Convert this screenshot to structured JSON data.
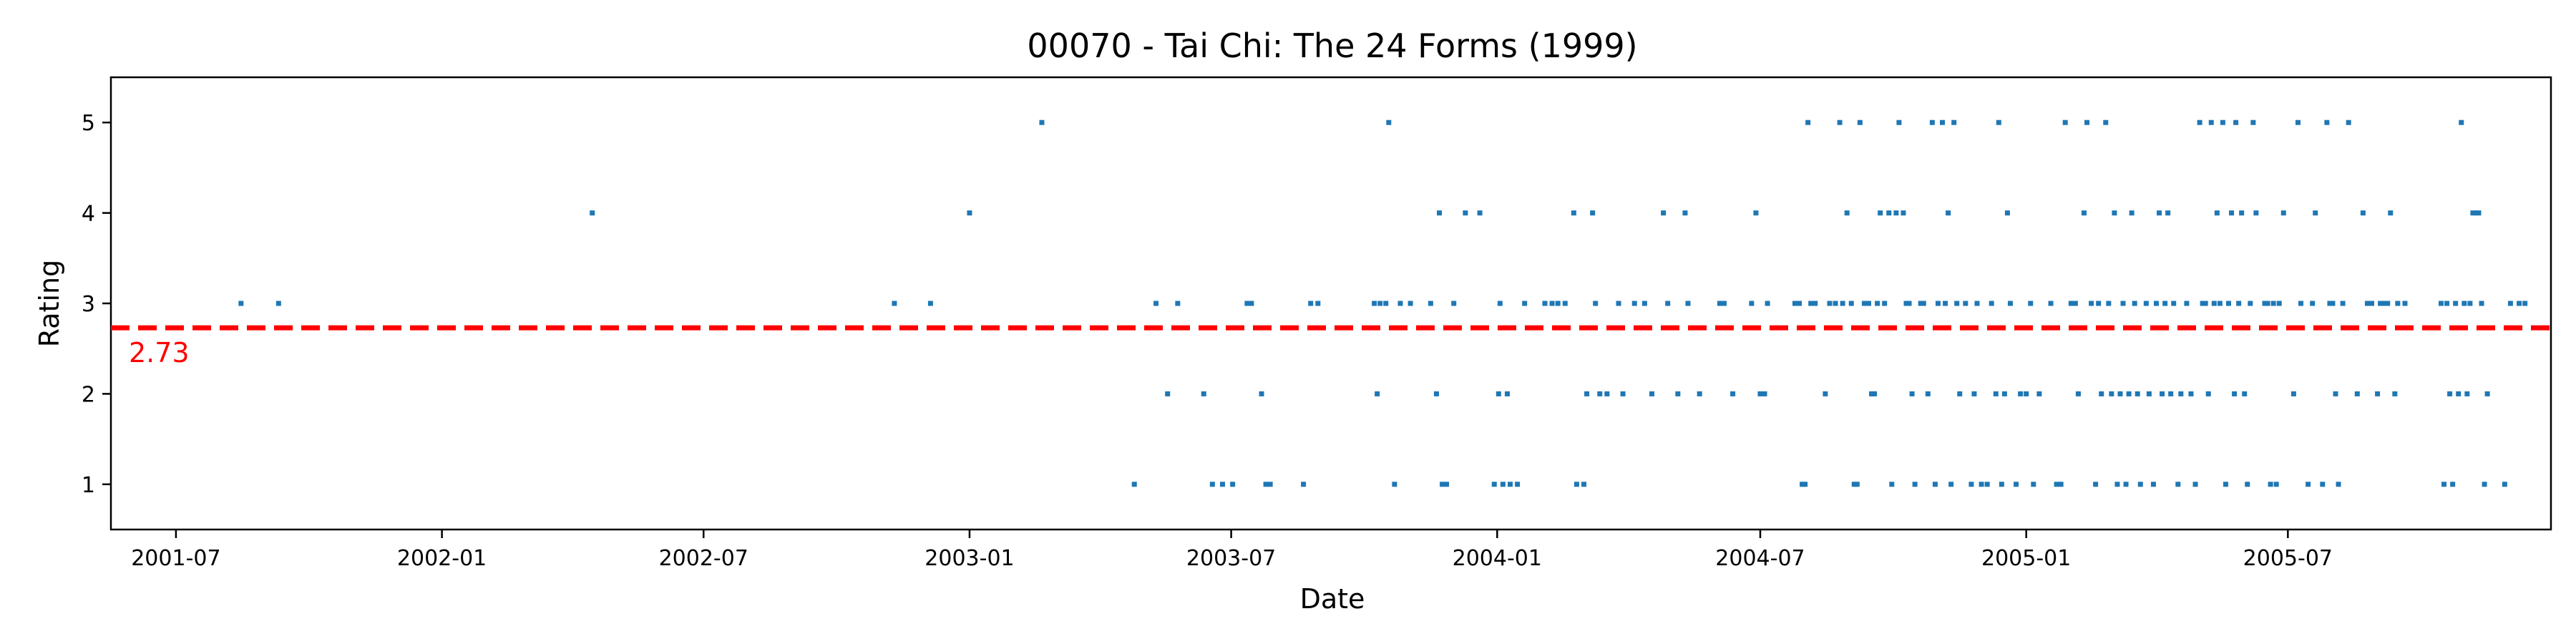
{
  "chart_data": {
    "type": "scatter",
    "title": "00070 - Tai Chi: The 24 Forms (1999)",
    "xlabel": "Date",
    "ylabel": "Rating",
    "x_range": [
      "2001-05-17",
      "2005-12-30"
    ],
    "ylim": [
      0.5,
      5.5
    ],
    "x_ticks": [
      "2001-07",
      "2002-01",
      "2002-07",
      "2003-01",
      "2003-07",
      "2004-01",
      "2004-07",
      "2005-01",
      "2005-07"
    ],
    "y_ticks": [
      1,
      2,
      3,
      4,
      5
    ],
    "grid": false,
    "legend": "none",
    "point_color": "#1f77b4",
    "mean_line": {
      "value": 2.73,
      "label": "2.73",
      "color": "#ff0000",
      "style": "dashed"
    },
    "points": [
      [
        "2001-08-15",
        3
      ],
      [
        "2001-09-10",
        3
      ],
      [
        "2002-04-15",
        4
      ],
      [
        "2002-11-10",
        3
      ],
      [
        "2002-12-05",
        3
      ],
      [
        "2003-01-01",
        4
      ],
      [
        "2003-02-20",
        5
      ],
      [
        "2003-04-25",
        1
      ],
      [
        "2003-05-10",
        3
      ],
      [
        "2003-05-18",
        2
      ],
      [
        "2003-05-25",
        3
      ],
      [
        "2003-06-12",
        2
      ],
      [
        "2003-06-18",
        1
      ],
      [
        "2003-06-25",
        1
      ],
      [
        "2003-07-02",
        1
      ],
      [
        "2003-07-12",
        3
      ],
      [
        "2003-07-15",
        3
      ],
      [
        "2003-07-22",
        2
      ],
      [
        "2003-07-25",
        1
      ],
      [
        "2003-07-28",
        1
      ],
      [
        "2003-08-20",
        1
      ],
      [
        "2003-08-25",
        3
      ],
      [
        "2003-08-30",
        3
      ],
      [
        "2003-10-08",
        3
      ],
      [
        "2003-10-10",
        2
      ],
      [
        "2003-10-12",
        3
      ],
      [
        "2003-10-16",
        3
      ],
      [
        "2003-10-18",
        5
      ],
      [
        "2003-10-22",
        1
      ],
      [
        "2003-10-26",
        3
      ],
      [
        "2003-11-02",
        3
      ],
      [
        "2003-11-16",
        3
      ],
      [
        "2003-11-20",
        2
      ],
      [
        "2003-11-22",
        4
      ],
      [
        "2003-11-24",
        1
      ],
      [
        "2003-11-27",
        1
      ],
      [
        "2003-12-02",
        3
      ],
      [
        "2003-12-10",
        4
      ],
      [
        "2003-12-20",
        4
      ],
      [
        "2003-12-30",
        1
      ],
      [
        "2004-01-02",
        2
      ],
      [
        "2004-01-03",
        3
      ],
      [
        "2004-01-05",
        1
      ],
      [
        "2004-01-08",
        2
      ],
      [
        "2004-01-10",
        1
      ],
      [
        "2004-01-15",
        1
      ],
      [
        "2004-01-20",
        3
      ],
      [
        "2004-02-03",
        3
      ],
      [
        "2004-02-08",
        3
      ],
      [
        "2004-02-12",
        3
      ],
      [
        "2004-02-17",
        3
      ],
      [
        "2004-02-23",
        4
      ],
      [
        "2004-02-25",
        1
      ],
      [
        "2004-03-01",
        1
      ],
      [
        "2004-03-03",
        2
      ],
      [
        "2004-03-07",
        4
      ],
      [
        "2004-03-09",
        3
      ],
      [
        "2004-03-12",
        2
      ],
      [
        "2004-03-17",
        2
      ],
      [
        "2004-03-25",
        3
      ],
      [
        "2004-03-28",
        2
      ],
      [
        "2004-04-05",
        3
      ],
      [
        "2004-04-12",
        3
      ],
      [
        "2004-04-17",
        2
      ],
      [
        "2004-04-25",
        4
      ],
      [
        "2004-04-28",
        3
      ],
      [
        "2004-05-05",
        2
      ],
      [
        "2004-05-10",
        4
      ],
      [
        "2004-05-12",
        3
      ],
      [
        "2004-05-20",
        2
      ],
      [
        "2004-06-03",
        3
      ],
      [
        "2004-06-06",
        3
      ],
      [
        "2004-06-12",
        2
      ],
      [
        "2004-06-25",
        3
      ],
      [
        "2004-06-28",
        4
      ],
      [
        "2004-07-01",
        2
      ],
      [
        "2004-07-04",
        2
      ],
      [
        "2004-07-06",
        3
      ],
      [
        "2004-07-25",
        3
      ],
      [
        "2004-07-26",
        3
      ],
      [
        "2004-07-28",
        3
      ],
      [
        "2004-07-30",
        1
      ],
      [
        "2004-08-01",
        1
      ],
      [
        "2004-08-03",
        5
      ],
      [
        "2004-08-05",
        3
      ],
      [
        "2004-08-08",
        3
      ],
      [
        "2004-08-15",
        2
      ],
      [
        "2004-08-18",
        3
      ],
      [
        "2004-08-22",
        3
      ],
      [
        "2004-08-25",
        5
      ],
      [
        "2004-08-27",
        3
      ],
      [
        "2004-08-30",
        4
      ],
      [
        "2004-09-02",
        3
      ],
      [
        "2004-09-04",
        1
      ],
      [
        "2004-09-06",
        1
      ],
      [
        "2004-09-08",
        5
      ],
      [
        "2004-09-11",
        3
      ],
      [
        "2004-09-14",
        3
      ],
      [
        "2004-09-16",
        2
      ],
      [
        "2004-09-18",
        2
      ],
      [
        "2004-09-20",
        3
      ],
      [
        "2004-09-22",
        4
      ],
      [
        "2004-09-25",
        3
      ],
      [
        "2004-09-28",
        4
      ],
      [
        "2004-09-30",
        1
      ],
      [
        "2004-10-03",
        4
      ],
      [
        "2004-10-05",
        5
      ],
      [
        "2004-10-08",
        4
      ],
      [
        "2004-10-10",
        3
      ],
      [
        "2004-10-12",
        3
      ],
      [
        "2004-10-14",
        2
      ],
      [
        "2004-10-16",
        1
      ],
      [
        "2004-10-20",
        3
      ],
      [
        "2004-10-22",
        3
      ],
      [
        "2004-10-25",
        2
      ],
      [
        "2004-10-28",
        5
      ],
      [
        "2004-10-30",
        1
      ],
      [
        "2004-11-01",
        3
      ],
      [
        "2004-11-04",
        5
      ],
      [
        "2004-11-06",
        3
      ],
      [
        "2004-11-08",
        4
      ],
      [
        "2004-11-10",
        1
      ],
      [
        "2004-11-12",
        5
      ],
      [
        "2004-11-14",
        3
      ],
      [
        "2004-11-16",
        2
      ],
      [
        "2004-11-20",
        3
      ],
      [
        "2004-11-24",
        1
      ],
      [
        "2004-11-26",
        2
      ],
      [
        "2004-11-28",
        3
      ],
      [
        "2004-12-01",
        1
      ],
      [
        "2004-12-05",
        1
      ],
      [
        "2004-12-08",
        3
      ],
      [
        "2004-12-11",
        2
      ],
      [
        "2004-12-13",
        5
      ],
      [
        "2004-12-15",
        1
      ],
      [
        "2004-12-17",
        2
      ],
      [
        "2004-12-19",
        4
      ],
      [
        "2004-12-21",
        3
      ],
      [
        "2004-12-25",
        1
      ],
      [
        "2004-12-28",
        2
      ],
      [
        "2005-01-01",
        2
      ],
      [
        "2005-01-04",
        3
      ],
      [
        "2005-01-06",
        1
      ],
      [
        "2005-01-10",
        2
      ],
      [
        "2005-01-18",
        3
      ],
      [
        "2005-01-22",
        1
      ],
      [
        "2005-01-25",
        1
      ],
      [
        "2005-01-28",
        5
      ],
      [
        "2005-02-01",
        3
      ],
      [
        "2005-02-04",
        3
      ],
      [
        "2005-02-06",
        2
      ],
      [
        "2005-02-10",
        4
      ],
      [
        "2005-02-12",
        5
      ],
      [
        "2005-02-15",
        3
      ],
      [
        "2005-02-18",
        1
      ],
      [
        "2005-02-20",
        3
      ],
      [
        "2005-02-22",
        2
      ],
      [
        "2005-02-25",
        5
      ],
      [
        "2005-02-27",
        3
      ],
      [
        "2005-03-01",
        2
      ],
      [
        "2005-03-03",
        4
      ],
      [
        "2005-03-05",
        1
      ],
      [
        "2005-03-07",
        2
      ],
      [
        "2005-03-09",
        3
      ],
      [
        "2005-03-11",
        1
      ],
      [
        "2005-03-13",
        2
      ],
      [
        "2005-03-15",
        4
      ],
      [
        "2005-03-17",
        3
      ],
      [
        "2005-03-19",
        2
      ],
      [
        "2005-03-21",
        1
      ],
      [
        "2005-03-25",
        3
      ],
      [
        "2005-03-27",
        2
      ],
      [
        "2005-03-30",
        1
      ],
      [
        "2005-04-01",
        3
      ],
      [
        "2005-04-03",
        4
      ],
      [
        "2005-04-05",
        2
      ],
      [
        "2005-04-07",
        3
      ],
      [
        "2005-04-09",
        4
      ],
      [
        "2005-04-11",
        2
      ],
      [
        "2005-04-13",
        3
      ],
      [
        "2005-04-16",
        1
      ],
      [
        "2005-04-18",
        2
      ],
      [
        "2005-04-22",
        3
      ],
      [
        "2005-04-25",
        2
      ],
      [
        "2005-04-28",
        1
      ],
      [
        "2005-05-01",
        5
      ],
      [
        "2005-05-03",
        3
      ],
      [
        "2005-05-05",
        3
      ],
      [
        "2005-05-07",
        2
      ],
      [
        "2005-05-09",
        5
      ],
      [
        "2005-05-11",
        3
      ],
      [
        "2005-05-13",
        4
      ],
      [
        "2005-05-15",
        3
      ],
      [
        "2005-05-17",
        5
      ],
      [
        "2005-05-19",
        1
      ],
      [
        "2005-05-21",
        3
      ],
      [
        "2005-05-23",
        4
      ],
      [
        "2005-05-25",
        2
      ],
      [
        "2005-05-26",
        5
      ],
      [
        "2005-05-28",
        3
      ],
      [
        "2005-05-30",
        4
      ],
      [
        "2005-06-01",
        2
      ],
      [
        "2005-06-03",
        1
      ],
      [
        "2005-06-05",
        3
      ],
      [
        "2005-06-07",
        5
      ],
      [
        "2005-06-09",
        4
      ],
      [
        "2005-06-15",
        3
      ],
      [
        "2005-06-17",
        3
      ],
      [
        "2005-06-19",
        1
      ],
      [
        "2005-06-21",
        3
      ],
      [
        "2005-06-23",
        1
      ],
      [
        "2005-06-25",
        3
      ],
      [
        "2005-06-28",
        4
      ],
      [
        "2005-07-05",
        2
      ],
      [
        "2005-07-08",
        5
      ],
      [
        "2005-07-10",
        3
      ],
      [
        "2005-07-15",
        1
      ],
      [
        "2005-07-18",
        3
      ],
      [
        "2005-07-20",
        4
      ],
      [
        "2005-07-25",
        1
      ],
      [
        "2005-07-28",
        5
      ],
      [
        "2005-07-30",
        3
      ],
      [
        "2005-08-01",
        3
      ],
      [
        "2005-08-03",
        2
      ],
      [
        "2005-08-05",
        1
      ],
      [
        "2005-08-08",
        3
      ],
      [
        "2005-08-12",
        5
      ],
      [
        "2005-08-18",
        2
      ],
      [
        "2005-08-22",
        4
      ],
      [
        "2005-08-25",
        3
      ],
      [
        "2005-08-28",
        3
      ],
      [
        "2005-09-01",
        2
      ],
      [
        "2005-09-03",
        3
      ],
      [
        "2005-09-05",
        3
      ],
      [
        "2005-09-08",
        3
      ],
      [
        "2005-09-10",
        4
      ],
      [
        "2005-09-13",
        2
      ],
      [
        "2005-09-15",
        3
      ],
      [
        "2005-09-20",
        3
      ],
      [
        "2005-10-15",
        3
      ],
      [
        "2005-10-17",
        1
      ],
      [
        "2005-10-19",
        3
      ],
      [
        "2005-10-21",
        2
      ],
      [
        "2005-10-23",
        1
      ],
      [
        "2005-10-25",
        3
      ],
      [
        "2005-10-27",
        2
      ],
      [
        "2005-10-29",
        5
      ],
      [
        "2005-10-31",
        3
      ],
      [
        "2005-11-02",
        2
      ],
      [
        "2005-11-04",
        3
      ],
      [
        "2005-11-06",
        4
      ],
      [
        "2005-11-08",
        4
      ],
      [
        "2005-11-10",
        4
      ],
      [
        "2005-11-12",
        3
      ],
      [
        "2005-11-14",
        1
      ],
      [
        "2005-11-16",
        2
      ],
      [
        "2005-11-28",
        1
      ],
      [
        "2005-12-02",
        3
      ],
      [
        "2005-12-08",
        3
      ],
      [
        "2005-12-12",
        3
      ]
    ]
  }
}
